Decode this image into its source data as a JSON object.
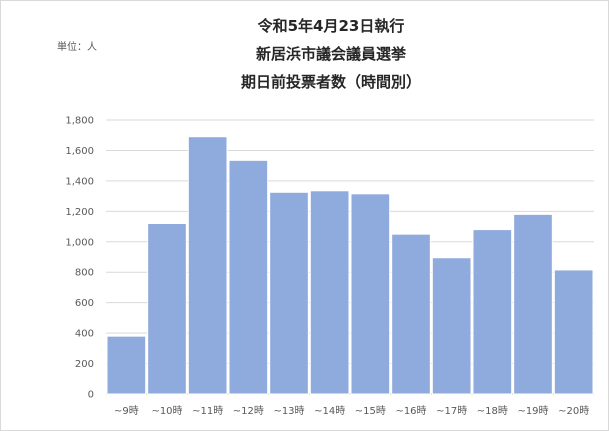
{
  "unit_label": "単位：人",
  "chart_data": {
    "type": "bar",
    "title": [
      "令和5年4月23日執行",
      "新居浜市議会議員選挙",
      "期日前投票者数（時間別）"
    ],
    "categories": [
      "~9時",
      "~10時",
      "~11時",
      "~12時",
      "~13時",
      "~14時",
      "~15時",
      "~16時",
      "~17時",
      "~18時",
      "~19時",
      "~20時"
    ],
    "values": [
      380,
      1120,
      1690,
      1535,
      1325,
      1335,
      1315,
      1050,
      895,
      1080,
      1180,
      815
    ],
    "ylim": [
      0,
      1800
    ],
    "yticks": [
      0,
      200,
      400,
      600,
      800,
      1000,
      1200,
      1400,
      1600,
      1800
    ],
    "ytick_labels": [
      "0",
      "200",
      "400",
      "600",
      "800",
      "1,000",
      "1,200",
      "1,400",
      "1,600",
      "1,800"
    ],
    "grid": true,
    "bar_color": "#8faadc",
    "bar_edge_color": "#ffffff"
  }
}
